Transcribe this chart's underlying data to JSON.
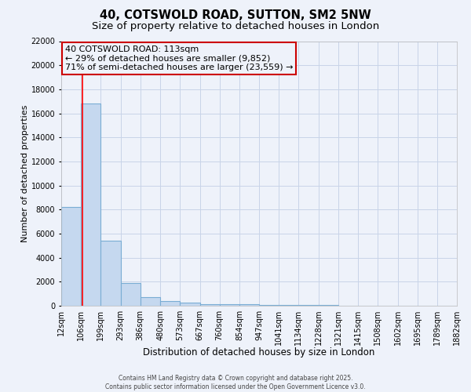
{
  "title": "40, COTSWOLD ROAD, SUTTON, SM2 5NW",
  "subtitle": "Size of property relative to detached houses in London",
  "xlabel": "Distribution of detached houses by size in London",
  "ylabel": "Number of detached properties",
  "bins": [
    "12sqm",
    "106sqm",
    "199sqm",
    "293sqm",
    "386sqm",
    "480sqm",
    "573sqm",
    "667sqm",
    "760sqm",
    "854sqm",
    "947sqm",
    "1041sqm",
    "1134sqm",
    "1228sqm",
    "1321sqm",
    "1415sqm",
    "1508sqm",
    "1602sqm",
    "1695sqm",
    "1789sqm",
    "1882sqm"
  ],
  "bin_edges": [
    12,
    106,
    199,
    293,
    386,
    480,
    573,
    667,
    760,
    854,
    947,
    1041,
    1134,
    1228,
    1321,
    1415,
    1508,
    1602,
    1695,
    1789,
    1882
  ],
  "counts": [
    8200,
    16800,
    5400,
    1900,
    700,
    380,
    230,
    160,
    140,
    100,
    80,
    60,
    50,
    40,
    30,
    25,
    20,
    18,
    15,
    12
  ],
  "bar_color": "#c5d8ef",
  "bar_edge_color": "#7aadd4",
  "grid_color": "#c8d4e8",
  "background_color": "#eef2fa",
  "red_line_x": 113,
  "annotation_title": "40 COTSWOLD ROAD: 113sqm",
  "annotation_line1": "← 29% of detached houses are smaller (9,852)",
  "annotation_line2": "71% of semi-detached houses are larger (23,559) →",
  "annotation_box_color": "#cc0000",
  "ylim": [
    0,
    22000
  ],
  "yticks": [
    0,
    2000,
    4000,
    6000,
    8000,
    10000,
    12000,
    14000,
    16000,
    18000,
    20000,
    22000
  ],
  "footer1": "Contains HM Land Registry data © Crown copyright and database right 2025.",
  "footer2": "Contains public sector information licensed under the Open Government Licence v3.0.",
  "title_fontsize": 10.5,
  "subtitle_fontsize": 9.5,
  "tick_fontsize": 7,
  "ylabel_fontsize": 8,
  "xlabel_fontsize": 8.5,
  "annotation_fontsize": 8
}
